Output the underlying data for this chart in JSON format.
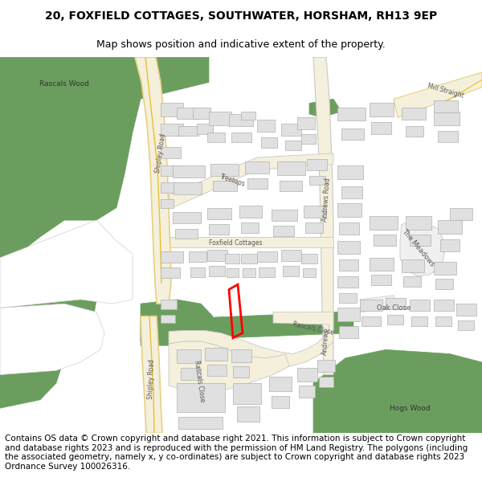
{
  "title": "20, FOXFIELD COTTAGES, SOUTHWATER, HORSHAM, RH13 9EP",
  "subtitle": "Map shows position and indicative extent of the property.",
  "footer": "Contains OS data © Crown copyright and database right 2021. This information is subject to Crown copyright and database rights 2023 and is reproduced with the permission of HM Land Registry. The polygons (including the associated geometry, namely x, y co-ordinates) are subject to Crown copyright and database rights 2023 Ordnance Survey 100026316.",
  "title_fontsize": 10,
  "subtitle_fontsize": 9,
  "footer_fontsize": 7.5,
  "bg_color": "#ffffff",
  "map_bg": "#ffffff",
  "road_fill": "#f5f0dc",
  "road_edge": "#e8d080",
  "road_edge2": "#c8c8c8",
  "building_color": "#e0e0e0",
  "building_edge": "#b0b0b0",
  "green_color": "#6b9e5e",
  "red_plot_color": "#ff0000",
  "white_area": "#ffffff",
  "gray_road": "#d8d8d8"
}
